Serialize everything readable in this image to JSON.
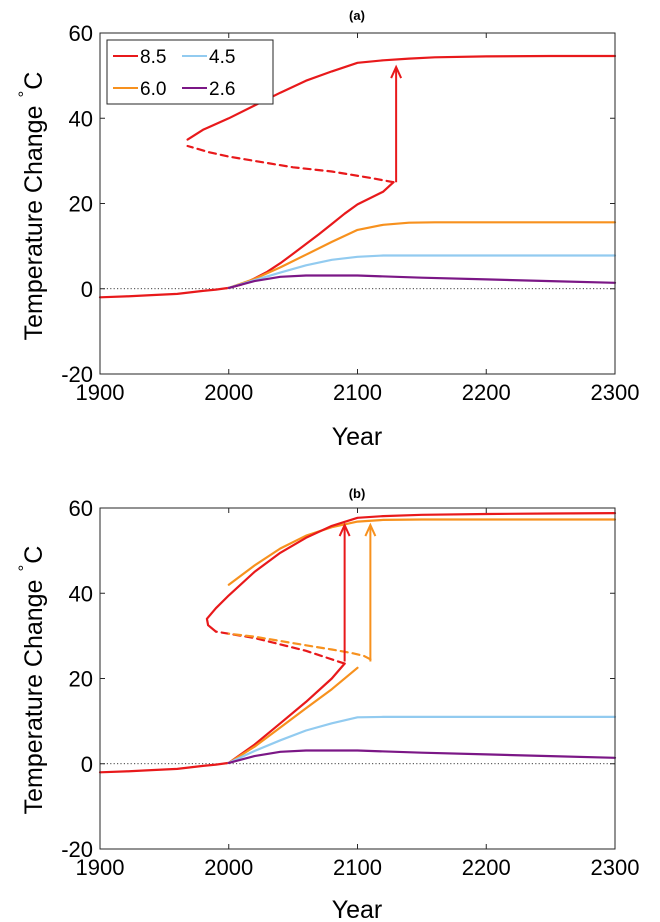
{
  "chart_data": [
    {
      "type": "line",
      "title": "(a)",
      "xlabel": "Year",
      "ylabel": "Temperature Change °C",
      "ylabel_text": "Temperature Change",
      "ylabel_degree": "°",
      "ylabel_unit": "C",
      "xlim": [
        1900,
        2300
      ],
      "ylim": [
        -20,
        60
      ],
      "xticks": [
        1900,
        2000,
        2100,
        2200,
        2300
      ],
      "yticks": [
        -20,
        0,
        20,
        40,
        60
      ],
      "grid": false,
      "legend": "top-left",
      "legend_entries": [
        "8.5",
        "4.5",
        "6.0",
        "2.6"
      ],
      "zero_line": "dotted",
      "series": [
        {
          "name": "8.5",
          "color": "#e8191b",
          "style": "solid",
          "x": [
            1900,
            1920,
            1940,
            1960,
            1980,
            1990,
            2000,
            2010,
            2020,
            2030,
            2040,
            2050,
            2060,
            2070,
            2080,
            2090,
            2100,
            2110,
            2120,
            2128
          ],
          "y": [
            -2,
            -1.8,
            -1.5,
            -1.2,
            -0.5,
            -0.2,
            0.2,
            1,
            2.4,
            4,
            6,
            8.2,
            10.5,
            12.8,
            15.2,
            17.6,
            19.8,
            21.3,
            22.8,
            25
          ]
        },
        {
          "name": "8.5",
          "color": "#e8191b",
          "style": "dashed",
          "x": [
            2128,
            2110,
            2080,
            2050,
            2020,
            2000,
            1985,
            1968
          ],
          "y": [
            25,
            26,
            27.5,
            28.5,
            30,
            31,
            32,
            33.5
          ]
        },
        {
          "name": "8.5",
          "color": "#e8191b",
          "style": "solid",
          "x": [
            1968,
            1980,
            2000,
            2020,
            2040,
            2060,
            2080,
            2100,
            2120,
            2140,
            2160,
            2200,
            2250,
            2300
          ],
          "y": [
            35,
            37.3,
            40,
            43,
            46,
            48.8,
            51,
            53,
            53.6,
            54,
            54.3,
            54.5,
            54.6,
            54.6
          ]
        },
        {
          "name": "6.0",
          "color": "#f7911e",
          "style": "solid",
          "x": [
            2000,
            2020,
            2040,
            2060,
            2080,
            2100,
            2120,
            2140,
            2160,
            2200,
            2250,
            2300
          ],
          "y": [
            0.2,
            2.3,
            5,
            8,
            11,
            13.8,
            15,
            15.5,
            15.6,
            15.6,
            15.6,
            15.6
          ]
        },
        {
          "name": "4.5",
          "color": "#92cbf0",
          "style": "solid",
          "x": [
            2000,
            2020,
            2040,
            2060,
            2080,
            2100,
            2120,
            2140,
            2200,
            2300
          ],
          "y": [
            0.2,
            2,
            3.8,
            5.5,
            6.8,
            7.5,
            7.8,
            7.8,
            7.8,
            7.8
          ]
        },
        {
          "name": "2.6",
          "color": "#7b1786",
          "style": "solid",
          "x": [
            2000,
            2020,
            2040,
            2060,
            2080,
            2100,
            2150,
            2200,
            2250,
            2300
          ],
          "y": [
            0.2,
            1.8,
            2.8,
            3.1,
            3.1,
            3.1,
            2.6,
            2.2,
            1.8,
            1.4
          ]
        }
      ],
      "arrows": [
        {
          "color": "#e8191b",
          "x": 2130,
          "y_from": 25,
          "y_to": 52
        }
      ]
    },
    {
      "type": "line",
      "title": "(b)",
      "xlabel": "Year",
      "ylabel": "Temperature Change °C",
      "ylabel_text": "Temperature Change",
      "ylabel_degree": "°",
      "ylabel_unit": "C",
      "xlim": [
        1900,
        2300
      ],
      "ylim": [
        -20,
        60
      ],
      "xticks": [
        1900,
        2000,
        2100,
        2200,
        2300
      ],
      "yticks": [
        -20,
        0,
        20,
        40,
        60
      ],
      "grid": false,
      "zero_line": "dotted",
      "series": [
        {
          "name": "8.5",
          "color": "#e8191b",
          "style": "solid",
          "x": [
            1900,
            1920,
            1940,
            1960,
            1980,
            1990,
            2000,
            2020,
            2040,
            2060,
            2080,
            2090
          ],
          "y": [
            -2,
            -1.8,
            -1.5,
            -1.2,
            -0.5,
            -0.2,
            0.2,
            4.5,
            9.5,
            14.5,
            20,
            23.5
          ]
        },
        {
          "name": "6.0",
          "color": "#f7911e",
          "style": "solid",
          "x": [
            2000,
            2020,
            2040,
            2060,
            2080,
            2100
          ],
          "y": [
            0.2,
            4,
            8.5,
            13,
            17.5,
            22.5
          ]
        },
        {
          "name": "8.5",
          "color": "#e8191b",
          "style": "dashed",
          "x": [
            2090,
            2075,
            2060,
            2040,
            2020,
            2000,
            1990
          ],
          "y": [
            23.5,
            25,
            26.5,
            28,
            29.5,
            30.5,
            31
          ]
        },
        {
          "name": "6.0",
          "color": "#f7911e",
          "style": "dashed",
          "x": [
            2110,
            2105,
            2095,
            2080,
            2060,
            2040,
            2020,
            2000
          ],
          "y": [
            24.5,
            25.3,
            26,
            26.8,
            27.8,
            28.8,
            29.8,
            30.5
          ]
        },
        {
          "name": "6.0",
          "color": "#f7911e",
          "style": "solid",
          "x": [
            2000,
            2020,
            2040,
            2060,
            2080,
            2100,
            2120,
            2150,
            2200,
            2250,
            2300
          ],
          "y": [
            42,
            46.5,
            50.5,
            53.5,
            55.5,
            56.8,
            57.2,
            57.3,
            57.3,
            57.3,
            57.3
          ]
        },
        {
          "name": "8.5",
          "color": "#e8191b",
          "style": "solid",
          "x": [
            1990,
            1984,
            1983,
            1990,
            2000,
            2020,
            2040,
            2060,
            2080,
            2100,
            2120,
            2150,
            2200,
            2250,
            2300
          ],
          "y": [
            31,
            32.5,
            34,
            36.5,
            39.5,
            45,
            49.5,
            53,
            55.8,
            57.7,
            58.1,
            58.4,
            58.6,
            58.7,
            58.8
          ]
        },
        {
          "name": "4.5",
          "color": "#92cbf0",
          "style": "solid",
          "x": [
            2000,
            2020,
            2040,
            2060,
            2080,
            2100,
            2120,
            2150,
            2200,
            2300
          ],
          "y": [
            0.2,
            3,
            5.5,
            7.8,
            9.5,
            10.9,
            11,
            11,
            11,
            11
          ]
        },
        {
          "name": "2.6",
          "color": "#7b1786",
          "style": "solid",
          "x": [
            2000,
            2020,
            2040,
            2060,
            2080,
            2100,
            2150,
            2200,
            2250,
            2300
          ],
          "y": [
            0.2,
            1.8,
            2.8,
            3.1,
            3.1,
            3.1,
            2.6,
            2.2,
            1.8,
            1.4
          ]
        }
      ],
      "arrows": [
        {
          "color": "#e8191b",
          "x": 2090,
          "y_from": 24,
          "y_to": 56
        },
        {
          "color": "#f7911e",
          "x": 2110,
          "y_from": 24,
          "y_to": 56
        }
      ]
    }
  ]
}
